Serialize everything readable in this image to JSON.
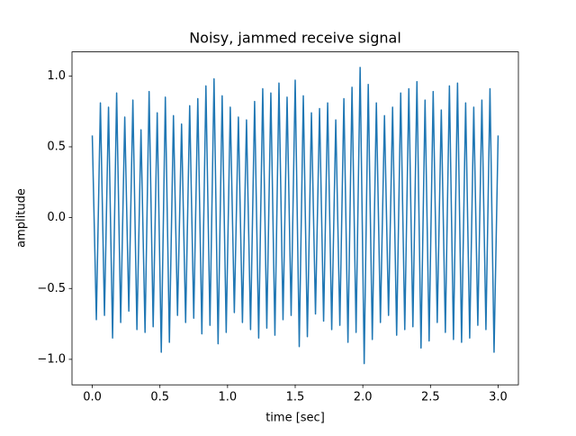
{
  "chart_data": {
    "type": "line",
    "title": "Noisy, jammed receive signal",
    "x_label": "time [sec]",
    "y_label": "amplitude",
    "x": [
      0,
      0.03,
      0.06,
      0.09,
      0.12,
      0.15,
      0.18,
      0.21,
      0.24,
      0.27,
      0.3,
      0.33,
      0.36,
      0.39,
      0.42,
      0.45,
      0.48,
      0.51,
      0.54,
      0.57,
      0.6,
      0.63,
      0.66,
      0.69,
      0.72,
      0.75,
      0.78,
      0.81,
      0.84,
      0.87,
      0.9,
      0.93,
      0.96,
      0.99,
      1.02,
      1.05,
      1.08,
      1.11,
      1.14,
      1.17,
      1.2,
      1.23,
      1.26,
      1.29,
      1.32,
      1.35,
      1.38,
      1.41,
      1.44,
      1.47,
      1.5,
      1.53,
      1.56,
      1.59,
      1.62,
      1.65,
      1.68,
      1.71,
      1.74,
      1.77,
      1.8,
      1.83,
      1.86,
      1.89,
      1.92,
      1.95,
      1.98,
      2.01,
      2.04,
      2.07,
      2.1,
      2.13,
      2.16,
      2.19,
      2.22,
      2.25,
      2.28,
      2.31,
      2.34,
      2.37,
      2.4,
      2.43,
      2.46,
      2.49,
      2.52,
      2.55,
      2.58,
      2.61,
      2.64,
      2.67,
      2.7,
      2.73,
      2.76,
      2.79,
      2.82,
      2.85,
      2.88,
      2.91,
      2.94,
      2.97,
      3.0
    ],
    "series": [
      {
        "color": "#1f77b4",
        "values": [
          0.58,
          -0.72,
          0.81,
          -0.69,
          0.78,
          -0.85,
          0.88,
          -0.74,
          0.71,
          -0.66,
          0.83,
          -0.79,
          0.62,
          -0.81,
          0.89,
          -0.77,
          0.74,
          -0.95,
          0.85,
          -0.88,
          0.72,
          -0.69,
          0.66,
          -0.74,
          0.79,
          -0.71,
          0.84,
          -0.82,
          0.93,
          -0.76,
          0.98,
          -0.89,
          0.86,
          -0.81,
          0.78,
          -0.67,
          0.71,
          -0.74,
          0.69,
          -0.79,
          0.82,
          -0.85,
          0.91,
          -0.78,
          0.88,
          -0.83,
          0.95,
          -0.72,
          0.85,
          -0.69,
          0.97,
          -0.91,
          0.86,
          -0.84,
          0.74,
          -0.68,
          0.77,
          -0.73,
          0.81,
          -0.79,
          0.69,
          -0.76,
          0.84,
          -0.88,
          0.92,
          -0.81,
          1.06,
          -1.03,
          0.94,
          -0.86,
          0.81,
          -0.74,
          0.72,
          -0.69,
          0.78,
          -0.83,
          0.88,
          -0.79,
          0.91,
          -0.77,
          0.96,
          -0.92,
          0.83,
          -0.87,
          0.89,
          -0.74,
          0.76,
          -0.81,
          0.93,
          -0.86,
          0.95,
          -0.88,
          0.81,
          -0.85,
          0.78,
          -0.76,
          0.83,
          -0.79,
          0.91,
          -0.95,
          0.58
        ]
      }
    ],
    "xlim": [
      -0.15,
      3.15
    ],
    "xticks": [
      {
        "value": 0,
        "label": "0.0"
      },
      {
        "value": 0.5,
        "label": "0.5"
      },
      {
        "value": 1,
        "label": "1.0"
      },
      {
        "value": 1.5,
        "label": "1.5"
      },
      {
        "value": 2,
        "label": "2.0"
      },
      {
        "value": 2.5,
        "label": "2.5"
      },
      {
        "value": 3,
        "label": "3.0"
      }
    ],
    "ylim": [
      -1.18,
      1.17
    ],
    "yticks": [
      {
        "value": -1,
        "label": "−1.0"
      },
      {
        "value": -0.5,
        "label": "−0.5"
      },
      {
        "value": 0,
        "label": "0.0"
      },
      {
        "value": 0.5,
        "label": "0.5"
      },
      {
        "value": 1,
        "label": "1.0"
      }
    ]
  }
}
